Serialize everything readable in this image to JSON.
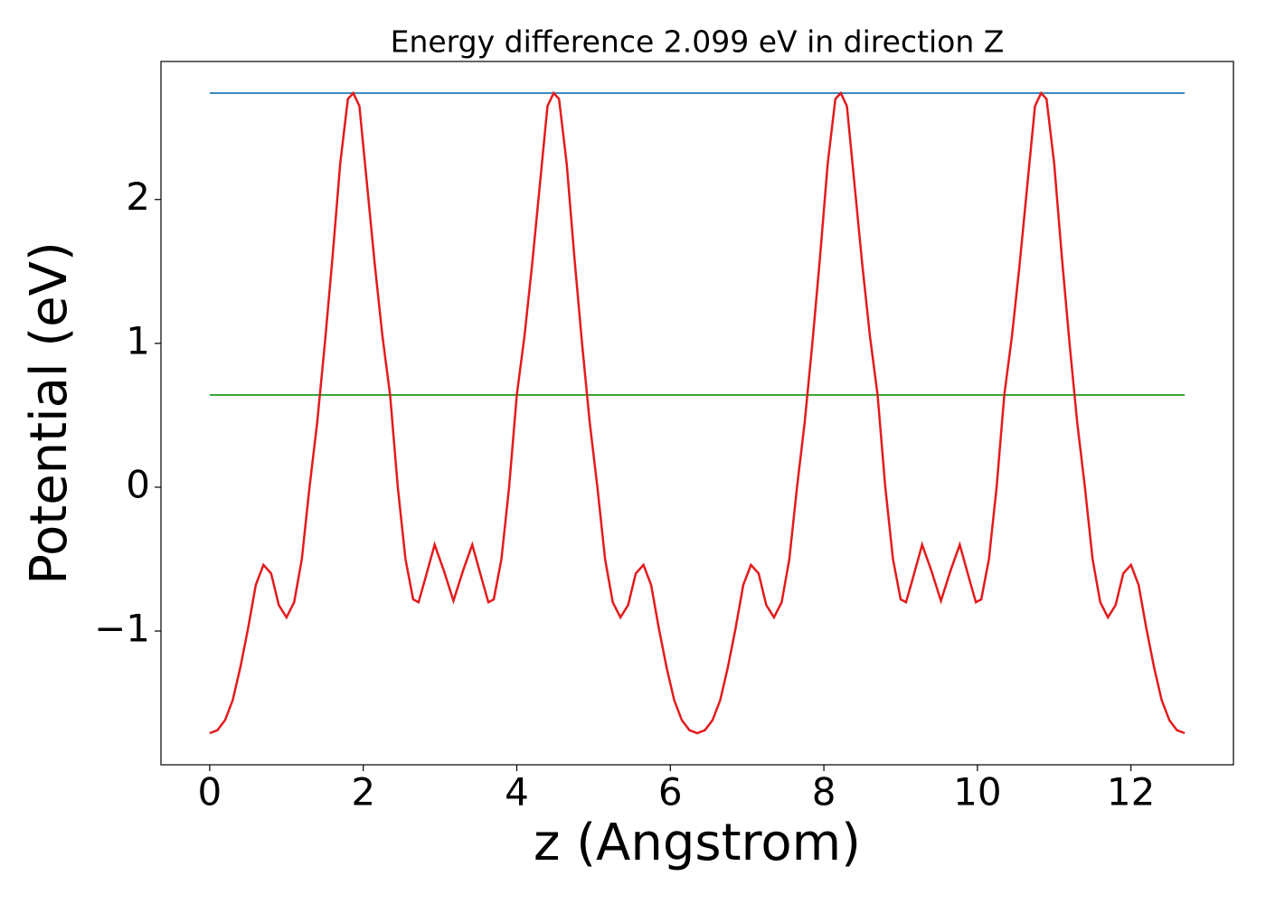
{
  "chart_data": {
    "type": "line",
    "title": "Energy difference 2.099 eV in direction Z",
    "x_label": "z (Angstrom)",
    "y_label": "Potential (eV)",
    "xlim": [
      -0.635,
      13.335
    ],
    "ylim": [
      -1.93,
      2.96
    ],
    "xticks": [
      0,
      2,
      4,
      6,
      8,
      10,
      12
    ],
    "yticks": [
      {
        "value": -1,
        "label": "−1"
      },
      0,
      1,
      2
    ],
    "series": [
      {
        "color": "#1f77b4",
        "x": [
          0,
          12.7
        ],
        "values": [
          2.74,
          2.74
        ]
      },
      {
        "color": "#2ca02c",
        "x": [
          0,
          12.7
        ],
        "values": [
          0.641,
          0.641
        ]
      },
      {
        "color": "#e41a1c",
        "x": [
          0,
          0.1,
          0.2,
          0.3,
          0.4,
          0.5,
          0.6,
          0.7,
          0.8,
          0.9,
          1.0,
          1.1,
          1.2,
          1.3,
          1.4,
          1.5,
          1.6,
          1.7,
          1.8,
          1.87,
          1.95,
          2.05,
          2.15,
          2.25,
          2.35,
          2.45,
          2.55,
          2.65,
          2.72,
          2.8,
          2.93,
          3.05,
          3.175,
          3.3,
          3.42,
          3.55,
          3.63,
          3.7,
          3.8,
          3.9,
          4.0,
          4.1,
          4.2,
          4.3,
          4.4,
          4.48,
          4.55,
          4.65,
          4.75,
          4.85,
          4.95,
          5.05,
          5.15,
          5.25,
          5.35,
          5.45,
          5.55,
          5.65,
          5.75,
          5.85,
          5.95,
          6.05,
          6.15,
          6.25,
          6.35,
          6.45,
          6.55,
          6.65,
          6.75,
          6.85,
          6.95,
          7.05,
          7.15,
          7.25,
          7.35,
          7.45,
          7.55,
          7.65,
          7.75,
          7.85,
          7.95,
          8.05,
          8.15,
          8.22,
          8.3,
          8.4,
          8.5,
          8.6,
          8.7,
          8.8,
          8.9,
          9.0,
          9.07,
          9.15,
          9.28,
          9.4,
          9.525,
          9.65,
          9.77,
          9.9,
          9.98,
          10.05,
          10.15,
          10.25,
          10.35,
          10.45,
          10.55,
          10.65,
          10.75,
          10.83,
          10.9,
          11.0,
          11.1,
          11.2,
          11.3,
          11.4,
          11.5,
          11.6,
          11.7,
          11.8,
          11.9,
          12.0,
          12.1,
          12.2,
          12.3,
          12.4,
          12.5,
          12.6,
          12.7
        ],
        "values": [
          -1.71,
          -1.69,
          -1.62,
          -1.48,
          -1.25,
          -0.98,
          -0.68,
          -0.54,
          -0.6,
          -0.82,
          -0.905,
          -0.8,
          -0.5,
          0.0,
          0.45,
          1.0,
          1.6,
          2.25,
          2.7,
          2.74,
          2.65,
          2.1,
          1.55,
          1.05,
          0.64,
          0.0,
          -0.5,
          -0.78,
          -0.8,
          -0.65,
          -0.4,
          -0.58,
          -0.79,
          -0.58,
          -0.4,
          -0.65,
          -0.8,
          -0.78,
          -0.5,
          0.0,
          0.64,
          1.05,
          1.55,
          2.1,
          2.65,
          2.74,
          2.7,
          2.25,
          1.6,
          1.0,
          0.45,
          0.0,
          -0.5,
          -0.8,
          -0.905,
          -0.82,
          -0.6,
          -0.54,
          -0.68,
          -0.98,
          -1.25,
          -1.48,
          -1.62,
          -1.69,
          -1.71,
          -1.69,
          -1.62,
          -1.48,
          -1.25,
          -0.98,
          -0.68,
          -0.54,
          -0.6,
          -0.82,
          -0.905,
          -0.8,
          -0.5,
          0.0,
          0.45,
          1.0,
          1.6,
          2.25,
          2.7,
          2.74,
          2.65,
          2.1,
          1.55,
          1.05,
          0.64,
          0.0,
          -0.5,
          -0.78,
          -0.8,
          -0.65,
          -0.4,
          -0.58,
          -0.79,
          -0.58,
          -0.4,
          -0.65,
          -0.8,
          -0.78,
          -0.5,
          0.0,
          0.64,
          1.05,
          1.55,
          2.1,
          2.65,
          2.74,
          2.7,
          2.25,
          1.6,
          1.0,
          0.45,
          0.0,
          -0.5,
          -0.8,
          -0.905,
          -0.82,
          -0.6,
          -0.54,
          -0.68,
          -0.98,
          -1.25,
          -1.48,
          -1.62,
          -1.69,
          -1.71
        ]
      }
    ]
  }
}
